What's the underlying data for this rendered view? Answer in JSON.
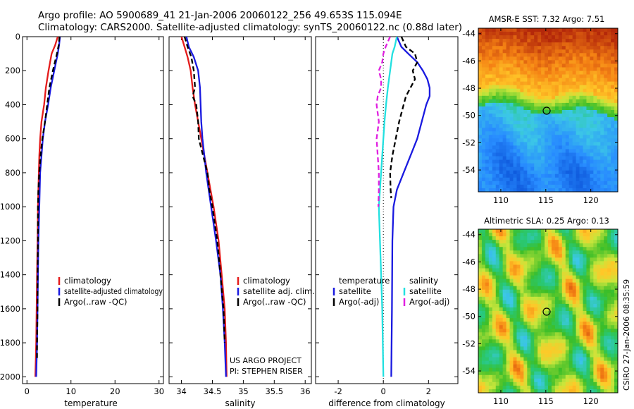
{
  "header": {
    "line1": "Argo profile: AO 5900689_41 21-Jan-2006 20060122_256 49.653S 115.094E",
    "line2": "Climatology: CARS2000. Satellite-adjusted climatology: synTS_20060122.nc (0.88d later)"
  },
  "colors": {
    "climatology": "#e41b1b",
    "satellite": "#1a1ae0",
    "argo": "#000000",
    "sat_diff_salinity": "#22e0e0",
    "argo_diff_salinity": "#e020e0"
  },
  "chart_data": [
    {
      "type": "line",
      "id": "temperature",
      "xlabel": "temperature",
      "xlim": [
        -1,
        31
      ],
      "ylim": [
        0,
        2040
      ],
      "y_reversed": true,
      "xticks": [
        0,
        10,
        20,
        30
      ],
      "yticks": [
        0,
        200,
        400,
        600,
        800,
        1000,
        1200,
        1400,
        1600,
        1800,
        2000
      ],
      "legend": [
        "climatology",
        "satellite-adjusted climatology",
        "Argo(..raw -QC)"
      ],
      "series": [
        {
          "name": "climatology",
          "color": "#e41b1b",
          "style": "solid",
          "x": [
            7.0,
            6.4,
            5.6,
            4.9,
            4.3,
            3.9,
            3.3,
            3.0,
            2.8,
            2.7,
            2.6,
            2.5,
            2.4,
            2.3,
            2.2,
            2.1,
            2.0,
            1.9
          ],
          "y": [
            0,
            50,
            100,
            200,
            300,
            400,
            500,
            600,
            700,
            800,
            900,
            1000,
            1200,
            1400,
            1600,
            1800,
            1900,
            2000
          ]
        },
        {
          "name": "satellite-adjusted climatology",
          "color": "#1a1ae0",
          "style": "solid",
          "x": [
            7.5,
            7.3,
            7.0,
            6.2,
            5.4,
            4.8,
            4.1,
            3.6,
            3.3,
            3.0,
            2.9,
            2.8,
            2.6,
            2.5,
            2.4,
            2.3,
            2.2,
            2.1
          ],
          "y": [
            0,
            50,
            100,
            200,
            300,
            400,
            500,
            600,
            700,
            800,
            900,
            1000,
            1200,
            1400,
            1600,
            1800,
            1900,
            2000
          ]
        },
        {
          "name": "Argo(..raw -QC)",
          "color": "#000000",
          "style": "dashed",
          "x": [
            7.4,
            7.2,
            6.8,
            5.9,
            5.1,
            4.6,
            4.1,
            3.5,
            3.1,
            2.8,
            2.6,
            2.5,
            2.5,
            2.4,
            2.4,
            2.3,
            2.3
          ],
          "y": [
            0,
            50,
            100,
            200,
            300,
            400,
            500,
            600,
            700,
            800,
            900,
            1000,
            1200,
            1400,
            1600,
            1800,
            1900
          ]
        }
      ]
    },
    {
      "type": "line",
      "id": "salinity",
      "xlabel": "salinity",
      "xlim": [
        33.8,
        36.1
      ],
      "ylim": [
        0,
        2040
      ],
      "y_reversed": true,
      "xticks": [
        34,
        34.5,
        35,
        35.5,
        36
      ],
      "legend": [
        "climatology",
        "satellite adj. clim.",
        "Argo(..raw -QC)"
      ],
      "annotation": [
        "US ARGO PROJECT",
        "PI: STEPHEN RISER"
      ],
      "series": [
        {
          "name": "climatology",
          "color": "#e41b1b",
          "style": "solid",
          "x": [
            34.0,
            34.05,
            34.1,
            34.15,
            34.18,
            34.22,
            34.27,
            34.32,
            34.37,
            34.42,
            34.47,
            34.52,
            34.6,
            34.65,
            34.7,
            34.72,
            34.73
          ],
          "y": [
            0,
            60,
            120,
            200,
            300,
            400,
            500,
            600,
            700,
            800,
            900,
            1000,
            1200,
            1400,
            1600,
            1800,
            2000
          ]
        },
        {
          "name": "satellite adj. clim.",
          "color": "#1a1ae0",
          "style": "solid",
          "x": [
            34.08,
            34.12,
            34.2,
            34.27,
            34.3,
            34.31,
            34.32,
            34.34,
            34.37,
            34.4,
            34.44,
            34.48,
            34.56,
            34.63,
            34.67,
            34.7,
            34.72
          ],
          "y": [
            0,
            60,
            120,
            200,
            300,
            400,
            500,
            600,
            700,
            800,
            900,
            1000,
            1200,
            1400,
            1600,
            1800,
            2000
          ]
        },
        {
          "name": "Argo(..raw -QC)",
          "color": "#000000",
          "style": "dashed",
          "x": [
            34.05,
            34.1,
            34.16,
            34.2,
            34.22,
            34.18,
            34.24,
            34.27,
            34.28,
            34.35,
            34.42,
            34.45,
            34.5,
            34.58,
            34.63,
            34.68,
            34.7
          ],
          "y": [
            0,
            60,
            120,
            200,
            300,
            350,
            400,
            500,
            600,
            700,
            800,
            900,
            1000,
            1200,
            1400,
            1600,
            1800
          ]
        }
      ]
    },
    {
      "type": "line",
      "id": "difference",
      "xlabel": "difference from climatology",
      "xlim": [
        -3,
        3.3
      ],
      "ylim": [
        0,
        2040
      ],
      "y_reversed": true,
      "xticks": [
        -2,
        0,
        2
      ],
      "legend_left": {
        "title": "temperature",
        "items": [
          "satellite",
          "Argo(-adj)"
        ]
      },
      "legend_right": {
        "title": "salinity",
        "items": [
          "satellite",
          "Argo(-adj)"
        ]
      },
      "series": [
        {
          "name": "temperature satellite",
          "color": "#1a1ae0",
          "style": "solid",
          "x": [
            0.6,
            0.8,
            1.1,
            1.5,
            1.75,
            1.95,
            2.05,
            2.05,
            1.9,
            1.7,
            1.5,
            1.2,
            0.9,
            0.6,
            0.45,
            0.4,
            0.38,
            0.35
          ],
          "y": [
            0,
            60,
            100,
            150,
            200,
            250,
            300,
            350,
            400,
            500,
            600,
            700,
            800,
            900,
            1000,
            1200,
            1600,
            2000
          ]
        },
        {
          "name": "temperature Argo(-adj)",
          "color": "#000000",
          "style": "dashed",
          "x": [
            0.8,
            1.0,
            1.4,
            1.5,
            1.3,
            1.4,
            1.2,
            1.0,
            0.9,
            0.7,
            0.55,
            0.4,
            0.3,
            0.32,
            0.35
          ],
          "y": [
            0,
            60,
            100,
            150,
            200,
            250,
            300,
            350,
            400,
            500,
            600,
            700,
            800,
            900,
            950
          ]
        },
        {
          "name": "salinity satellite",
          "color": "#22e0e0",
          "style": "solid",
          "x": [
            0.6,
            0.5,
            0.4,
            0.3,
            0.2,
            0.12,
            0.05,
            0.0,
            -0.05,
            -0.1,
            -0.15,
            -0.2,
            -0.15,
            -0.1,
            -0.05,
            0.0
          ],
          "y": [
            0,
            60,
            100,
            200,
            300,
            400,
            500,
            600,
            700,
            800,
            900,
            1000,
            1200,
            1400,
            1600,
            2000
          ]
        },
        {
          "name": "salinity Argo(-adj)",
          "color": "#e020e0",
          "style": "dashed",
          "x": [
            0.3,
            0.1,
            0.0,
            -0.05,
            -0.2,
            -0.1,
            -0.1,
            -0.25,
            -0.3,
            -0.2,
            -0.3,
            -0.25,
            -0.2,
            -0.2,
            -0.22
          ],
          "y": [
            0,
            60,
            100,
            150,
            200,
            250,
            300,
            350,
            400,
            500,
            600,
            700,
            800,
            900,
            1000
          ]
        }
      ]
    },
    {
      "type": "heatmap",
      "id": "sst_map",
      "title": "AMSR-E SST: 7.32 Argo: 7.51",
      "xlim": [
        107.5,
        123
      ],
      "ylim": [
        -55.6,
        -43.6
      ],
      "xticks": [
        110,
        115,
        120
      ],
      "yticks": [
        -44,
        -46,
        -48,
        -50,
        -52,
        -54
      ],
      "marker": {
        "lon": 115.094,
        "lat": -49.653
      }
    },
    {
      "type": "heatmap",
      "id": "sla_map",
      "title": "Altimetric SLA: 0.25 Argo: 0.13",
      "xlim": [
        107.5,
        123
      ],
      "ylim": [
        -55.6,
        -43.6
      ],
      "xticks": [
        110,
        115,
        120
      ],
      "yticks": [
        -44,
        -46,
        -48,
        -50,
        -52,
        -54
      ],
      "marker": {
        "lon": 115.094,
        "lat": -49.653
      }
    }
  ],
  "side_label": "CSIRO 27-Jan-2006 08:35:59"
}
